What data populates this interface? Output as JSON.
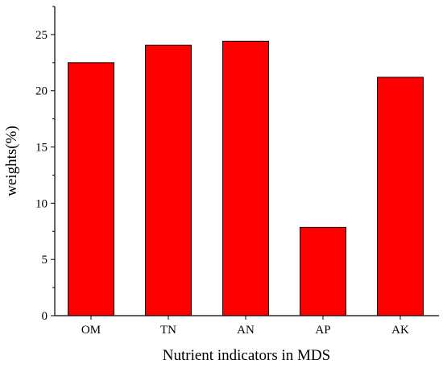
{
  "chart_data": {
    "type": "bar",
    "categories": [
      "OM",
      "TN",
      "AN",
      "AP",
      "AK"
    ],
    "values": [
      22.5,
      24.05,
      24.4,
      7.85,
      21.2
    ],
    "xlabel": "Nutrient indicators in MDS",
    "ylabel": "weights(%)",
    "ylim": [
      0,
      27.5
    ],
    "yticks": [
      0,
      5,
      10,
      15,
      20,
      25
    ],
    "grid": false,
    "bar_color": "#ff0000",
    "bar_edge_color": "#000000"
  }
}
